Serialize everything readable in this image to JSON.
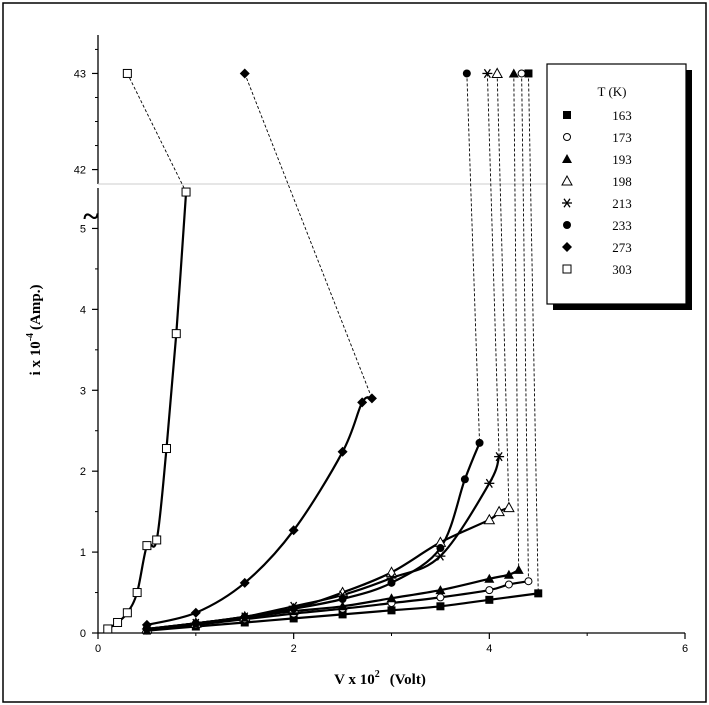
{
  "chart_data": {
    "type": "scatter",
    "xlabel_main": "V x 10",
    "xlabel_exp": "2",
    "xlabel_unit": "(Volt)",
    "ylabel_main": "i x 10",
    "ylabel_exp": "-4",
    "ylabel_unit": "(Amp.)",
    "break_symbol": "~",
    "x_ticks": [
      0,
      2,
      4,
      6
    ],
    "y_ticks_lower": [
      0,
      1,
      2,
      3,
      4,
      5
    ],
    "y_ticks_upper": [
      42,
      43
    ],
    "xlim": [
      0,
      6
    ],
    "ylim_lower": [
      0,
      5.5
    ],
    "ylim_upper": [
      41.85,
      43.4
    ],
    "legend_title": "T (K)",
    "legend_position": "top-right",
    "series": [
      {
        "name": "163",
        "marker": "square-filled",
        "x": [
          0.5,
          1.0,
          1.5,
          2.0,
          2.5,
          3.0,
          3.5,
          4.0,
          4.5
        ],
        "y": [
          0.03,
          0.08,
          0.13,
          0.18,
          0.23,
          0.28,
          0.33,
          0.41,
          0.49
        ],
        "break_top_x": 4.4,
        "break_bottom_x": 4.5
      },
      {
        "name": "173",
        "marker": "circle-open",
        "x": [
          0.5,
          1.0,
          1.5,
          2.0,
          2.5,
          3.0,
          3.5,
          4.0,
          4.2,
          4.4
        ],
        "y": [
          0.03,
          0.1,
          0.17,
          0.24,
          0.3,
          0.37,
          0.44,
          0.53,
          0.6,
          0.64
        ],
        "break_top_x": 4.33,
        "break_bottom_x": 4.4
      },
      {
        "name": "193",
        "marker": "triangle-filled",
        "x": [
          0.5,
          1.0,
          1.5,
          2.0,
          2.5,
          3.0,
          3.5,
          4.0,
          4.2,
          4.3
        ],
        "y": [
          0.04,
          0.12,
          0.19,
          0.27,
          0.33,
          0.43,
          0.53,
          0.67,
          0.72,
          0.78
        ],
        "break_top_x": 4.25,
        "break_bottom_x": 4.3
      },
      {
        "name": "198",
        "marker": "triangle-open",
        "x": [
          0.5,
          1.0,
          1.5,
          2.0,
          2.5,
          3.0,
          3.5,
          4.0,
          4.1,
          4.2
        ],
        "y": [
          0.05,
          0.12,
          0.2,
          0.3,
          0.5,
          0.75,
          1.12,
          1.4,
          1.5,
          1.55
        ],
        "break_top_x": 4.08,
        "break_bottom_x": 4.2
      },
      {
        "name": "213",
        "marker": "asterisk",
        "x": [
          0.5,
          1.0,
          1.5,
          2.0,
          2.5,
          3.0,
          3.5,
          4.0,
          4.1
        ],
        "y": [
          0.05,
          0.12,
          0.2,
          0.33,
          0.47,
          0.68,
          0.95,
          1.85,
          2.18
        ],
        "break_top_x": 3.98,
        "break_bottom_x": 4.1
      },
      {
        "name": "233",
        "marker": "circle-filled",
        "x": [
          0.5,
          1.0,
          1.5,
          2.0,
          2.5,
          3.0,
          3.5,
          3.75,
          3.9
        ],
        "y": [
          0.05,
          0.12,
          0.2,
          0.3,
          0.42,
          0.62,
          1.05,
          1.9,
          2.35
        ],
        "break_top_x": 3.77,
        "break_bottom_x": 3.9
      },
      {
        "name": "273",
        "marker": "diamond-filled",
        "x": [
          0.5,
          1.0,
          1.5,
          2.0,
          2.5,
          2.7,
          2.8
        ],
        "y": [
          0.1,
          0.25,
          0.62,
          1.27,
          2.24,
          2.85,
          2.9
        ],
        "break_top_x": 1.5,
        "break_bottom_x": 2.8
      },
      {
        "name": "303",
        "marker": "square-open",
        "x": [
          0.1,
          0.2,
          0.3,
          0.4,
          0.5,
          0.6,
          0.7,
          0.8,
          0.9
        ],
        "y": [
          0.05,
          0.13,
          0.25,
          0.5,
          1.08,
          1.15,
          2.28,
          3.7,
          5.45
        ],
        "break_top_x": 0.3,
        "break_bottom_x": 0.9
      }
    ]
  }
}
